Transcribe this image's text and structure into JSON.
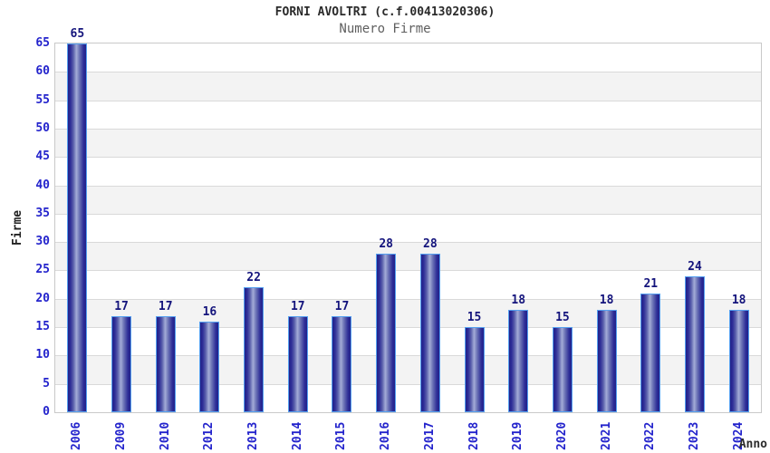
{
  "chart_data": {
    "type": "bar",
    "title": "FORNI AVOLTRI (c.f.00413020306)",
    "subtitle": "Numero Firme",
    "xlabel": "Anno",
    "ylabel": "Firme",
    "categories": [
      "2006",
      "2009",
      "2010",
      "2012",
      "2013",
      "2014",
      "2015",
      "2016",
      "2017",
      "2018",
      "2019",
      "2020",
      "2021",
      "2022",
      "2023",
      "2024"
    ],
    "values": [
      65,
      17,
      17,
      16,
      22,
      17,
      17,
      28,
      28,
      15,
      18,
      15,
      18,
      21,
      24,
      18
    ],
    "ylim": [
      0,
      65
    ],
    "ytick_step": 5,
    "yticks": [
      0,
      5,
      10,
      15,
      20,
      25,
      30,
      35,
      40,
      45,
      50,
      55,
      60,
      65
    ],
    "grid": true,
    "legend_position": "none",
    "value_labels_shown": true,
    "bar_label_color": "#14147c",
    "axis_tick_color": "#2323cc",
    "band_colors": [
      "#ffffff",
      "#f3f3f3"
    ],
    "gridline_color": "#d9d9d9",
    "plot_border_color": "#c9c9c9",
    "bar_border_color": "#55a0f0",
    "bar_dark_color": "#21218a",
    "bar_light_color": "#a4acd7",
    "title_color": "#2b2b2b",
    "subtitle_color": "#5f5f5f"
  }
}
